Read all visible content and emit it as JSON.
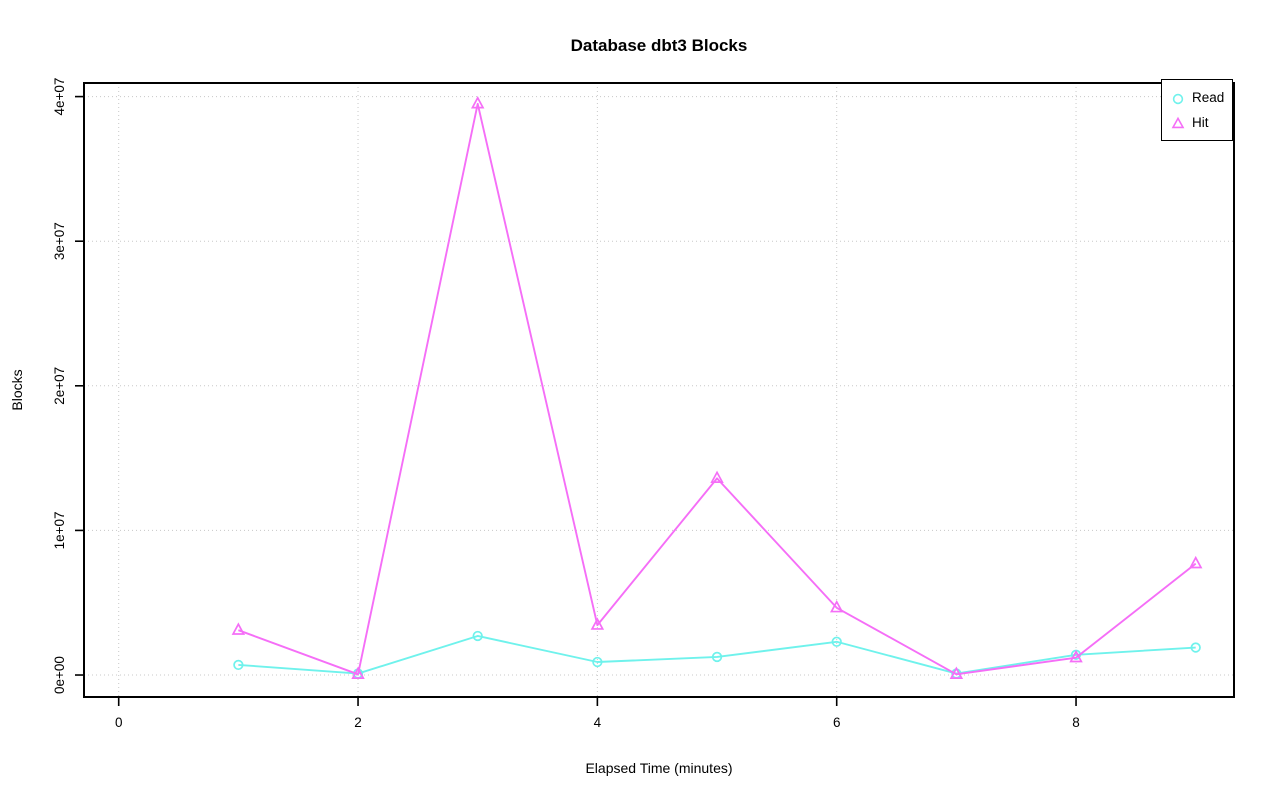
{
  "chart_data": {
    "type": "line",
    "title": "Database dbt3 Blocks",
    "xlabel": "Elapsed Time (minutes)",
    "ylabel": "Blocks",
    "x": [
      1,
      2,
      3,
      4,
      5,
      6,
      7,
      8,
      9
    ],
    "series": [
      {
        "name": "Read",
        "marker": "circle",
        "color": "#6ff2ec",
        "values": [
          700000,
          100000,
          2700000,
          900000,
          1250000,
          2300000,
          100000,
          1400000,
          1900000
        ]
      },
      {
        "name": "Hit",
        "marker": "triangle",
        "color": "#f56ef7",
        "values": [
          3100000,
          50000,
          39500000,
          3450000,
          13600000,
          4650000,
          50000,
          1200000,
          7700000
        ]
      }
    ],
    "x_ticks": [
      0,
      2,
      4,
      6,
      8
    ],
    "y_ticks": [
      {
        "value": 0,
        "label": "0e+00"
      },
      {
        "value": 10000000,
        "label": "1e+07"
      },
      {
        "value": 20000000,
        "label": "2e+07"
      },
      {
        "value": 30000000,
        "label": "3e+07"
      },
      {
        "value": 40000000,
        "label": "4e+07"
      }
    ],
    "xlim": [
      -0.29,
      9.32
    ],
    "ylim": [
      -1520000,
      40940000
    ],
    "grid": "dotted",
    "grid_color": "#c8c8c8",
    "axis_color": "#000000",
    "background": "#ffffff",
    "legend_position": "topright"
  }
}
